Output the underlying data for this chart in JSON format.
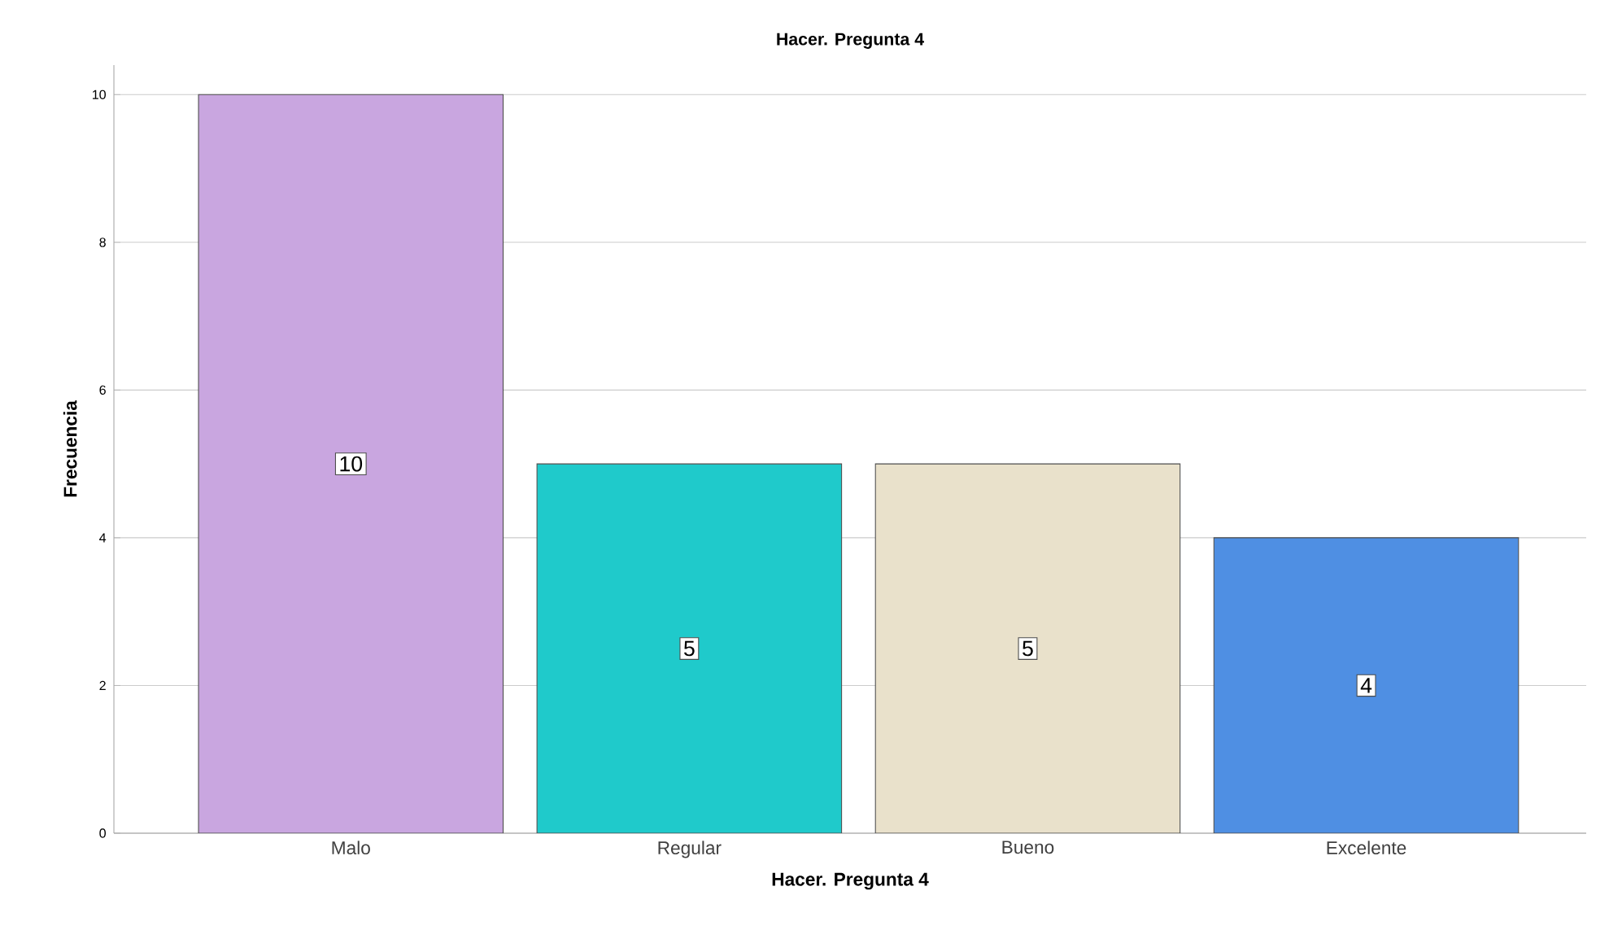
{
  "chart_data": {
    "type": "bar",
    "title": "Hacer. Pregunta 4",
    "xlabel": "Hacer. Pregunta 4",
    "ylabel": "Frecuencia",
    "categories": [
      "Malo",
      "Regular",
      "Bueno",
      "Excelente"
    ],
    "values": [
      10,
      5,
      5,
      4
    ],
    "colors": [
      "#c9a6e0",
      "#1fcacb",
      "#e9e1cb",
      "#4f8fe3"
    ],
    "ylim": [
      0,
      10.4
    ],
    "yticks": [
      0,
      2,
      4,
      6,
      8,
      10
    ],
    "grid": "y",
    "data_labels": true
  }
}
